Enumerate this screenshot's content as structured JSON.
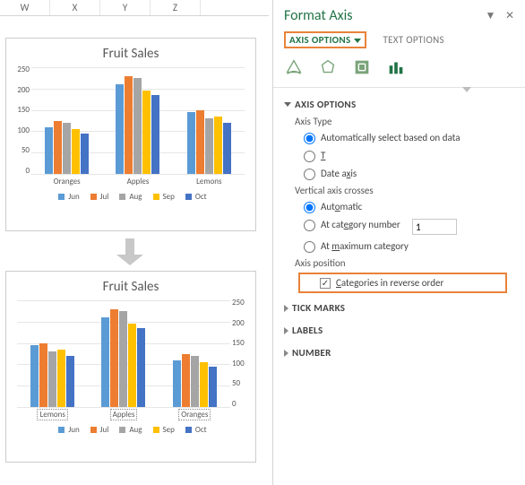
{
  "grid": {
    "columns": [
      "W",
      "X",
      "Y",
      "Z"
    ]
  },
  "chart1": {
    "title": "Fruit Sales",
    "type": "bar",
    "categories": [
      "Oranges",
      "Apples",
      "Lemons"
    ],
    "series": [
      {
        "name": "Jun",
        "color": "#5b9bd5",
        "values": [
          110,
          210,
          145
        ]
      },
      {
        "name": "Jul",
        "color": "#ed7d31",
        "values": [
          125,
          230,
          150
        ]
      },
      {
        "name": "Aug",
        "color": "#a5a5a5",
        "values": [
          120,
          225,
          130
        ]
      },
      {
        "name": "Sep",
        "color": "#ffc000",
        "values": [
          105,
          195,
          135
        ]
      },
      {
        "name": "Oct",
        "color": "#4472c4",
        "values": [
          95,
          185,
          120
        ]
      }
    ],
    "ymax": 250,
    "ystep": 50,
    "y_axis_side": "left",
    "grid_color": "#e6e6e6",
    "label_fontsize": 9,
    "title_fontsize": 15,
    "title_color": "#595959"
  },
  "chart2": {
    "title": "Fruit Sales",
    "type": "bar",
    "categories": [
      "Lemons",
      "Apples",
      "Oranges"
    ],
    "categories_selected": true,
    "series": [
      {
        "name": "Jun",
        "color": "#5b9bd5",
        "values": [
          145,
          210,
          110
        ]
      },
      {
        "name": "Jul",
        "color": "#ed7d31",
        "values": [
          150,
          230,
          125
        ]
      },
      {
        "name": "Aug",
        "color": "#a5a5a5",
        "values": [
          130,
          225,
          120
        ]
      },
      {
        "name": "Sep",
        "color": "#ffc000",
        "values": [
          135,
          195,
          105
        ]
      },
      {
        "name": "Oct",
        "color": "#4472c4",
        "values": [
          120,
          185,
          95
        ]
      }
    ],
    "ymax": 250,
    "ystep": 50,
    "y_axis_side": "right",
    "grid_color": "#e6e6e6",
    "label_fontsize": 9,
    "title_fontsize": 15,
    "title_color": "#595959"
  },
  "panel": {
    "title": "Format Axis",
    "tab_active": "AXIS OPTIONS",
    "tab_inactive": "TEXT OPTIONS",
    "icons": [
      "fill-line",
      "effects",
      "size-properties",
      "axis-options"
    ],
    "highlight_color": "#e8833a",
    "accent_color": "#217346",
    "sections": {
      "axis_options": {
        "title": "AXIS OPTIONS",
        "expanded": true,
        "axis_type_label": "Axis Type",
        "axis_type_opts": {
          "auto": "Automatically select based on data",
          "text": "Text axis",
          "date": "Date axis"
        },
        "axis_type_selected": "auto",
        "vert_crosses_label": "Vertical axis crosses",
        "vert_crosses_opts": {
          "auto": "Automatic",
          "atcat": "At category number",
          "atmax": "At maximum category"
        },
        "vert_crosses_selected": "auto",
        "at_category_value": "1",
        "axis_position_label": "Axis position",
        "reverse_label": "Categories in reverse order",
        "reverse_checked": true
      },
      "tick_marks": {
        "title": "TICK MARKS",
        "expanded": false
      },
      "labels": {
        "title": "LABELS",
        "expanded": false
      },
      "number": {
        "title": "NUMBER",
        "expanded": false
      }
    }
  }
}
